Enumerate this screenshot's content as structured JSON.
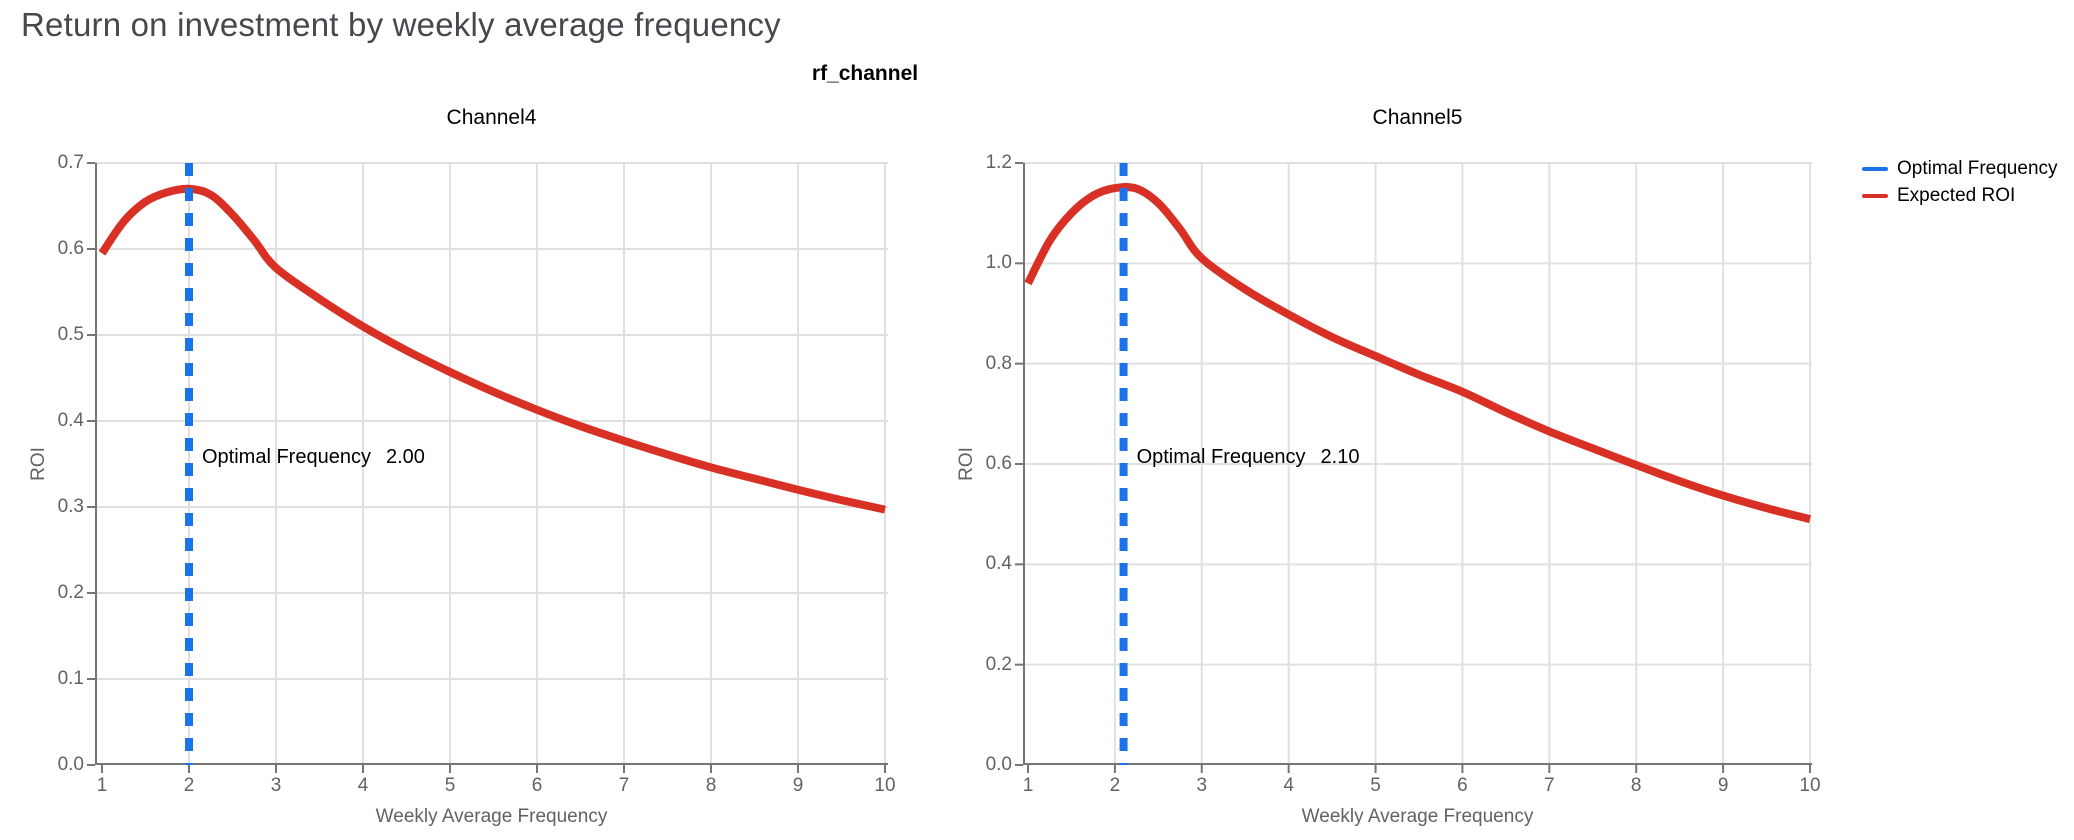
{
  "page": {
    "title": "Return on investment by weekly average frequency"
  },
  "figure": {
    "title": "rf_channel"
  },
  "legend": {
    "position": "top-right-outside",
    "items": [
      {
        "label": "Optimal Frequency",
        "color": "#1a73e8"
      },
      {
        "label": "Expected ROI",
        "color": "#d93025"
      }
    ]
  },
  "colors": {
    "page_title": "#45494e",
    "tick_text": "#5f6368",
    "axis": "#757575",
    "grid": "#e0e0e0",
    "roi_curve": "#d93025",
    "optimal_line": "#1a73e8",
    "annotation_text": "#000000"
  },
  "chart_data": [
    {
      "type": "line",
      "title": "Channel4",
      "xlabel": "Weekly Average Frequency",
      "ylabel": "ROI",
      "xlim": [
        1,
        10
      ],
      "ylim": [
        0,
        0.7
      ],
      "x_tick_labels": [
        "1",
        "2",
        "3",
        "4",
        "5",
        "6",
        "7",
        "8",
        "9",
        "10"
      ],
      "y_tick_labels": [
        "0.0",
        "0.1",
        "0.2",
        "0.3",
        "0.4",
        "0.5",
        "0.6",
        "0.7"
      ],
      "grid": true,
      "optimal_frequency": 2.0,
      "annotation": {
        "label": "Optimal Frequency",
        "value": "2.00"
      },
      "series": [
        {
          "name": "Expected ROI",
          "x": [
            1,
            1.25,
            1.5,
            1.75,
            2,
            2.25,
            2.5,
            2.75,
            3,
            3.5,
            4,
            4.5,
            5,
            5.5,
            6,
            6.5,
            7,
            7.5,
            8,
            8.5,
            9,
            9.5,
            10
          ],
          "y": [
            0.595,
            0.632,
            0.655,
            0.666,
            0.67,
            0.663,
            0.64,
            0.61,
            0.578,
            0.542,
            0.51,
            0.482,
            0.457,
            0.434,
            0.413,
            0.394,
            0.377,
            0.361,
            0.346,
            0.333,
            0.32,
            0.308,
            0.297
          ]
        }
      ]
    },
    {
      "type": "line",
      "title": "Channel5",
      "xlabel": "Weekly Average Frequency",
      "ylabel": "ROI",
      "xlim": [
        1,
        10
      ],
      "ylim": [
        0,
        1.2
      ],
      "x_tick_labels": [
        "1",
        "2",
        "3",
        "4",
        "5",
        "6",
        "7",
        "8",
        "9",
        "10"
      ],
      "y_tick_labels": [
        "0.0",
        "0.2",
        "0.4",
        "0.6",
        "0.8",
        "1.0",
        "1.2"
      ],
      "grid": true,
      "optimal_frequency": 2.1,
      "annotation": {
        "label": "Optimal Frequency",
        "value": "2.10"
      },
      "series": [
        {
          "name": "Expected ROI",
          "x": [
            1,
            1.25,
            1.5,
            1.75,
            2,
            2.25,
            2.5,
            2.75,
            3,
            3.5,
            4,
            4.5,
            5,
            5.5,
            6,
            6.5,
            7,
            7.5,
            8,
            8.5,
            9,
            9.5,
            10
          ],
          "y": [
            0.96,
            1.045,
            1.1,
            1.135,
            1.15,
            1.149,
            1.12,
            1.068,
            1.01,
            0.948,
            0.898,
            0.853,
            0.815,
            0.778,
            0.744,
            0.703,
            0.665,
            0.631,
            0.598,
            0.566,
            0.537,
            0.512,
            0.49
          ]
        }
      ]
    }
  ]
}
